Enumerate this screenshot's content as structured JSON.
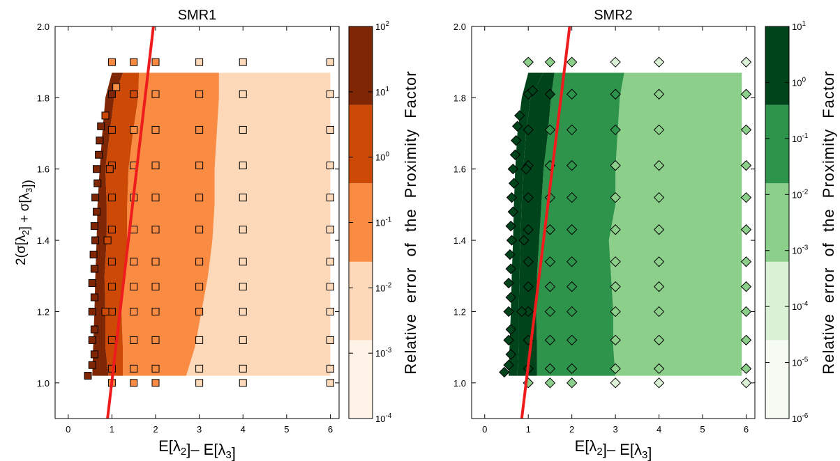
{
  "chart_data": [
    {
      "type": "contour",
      "title": "SMR1",
      "xlabel": "E[λ2]– E[λ3]",
      "ylabel": "2(σ[λ2] + σ[λ3])",
      "xlim": [
        -0.3,
        6.2
      ],
      "ylim": [
        0.9,
        2.0
      ],
      "x_ticks": [
        "0",
        "1",
        "2",
        "3",
        "4",
        "5",
        "6"
      ],
      "y_ticks": [
        "1.0",
        "1.2",
        "1.4",
        "1.6",
        "1.8",
        "2.0"
      ],
      "marker": "square",
      "colorbar": {
        "label": "Relative error of the Proximity Factor",
        "ticks": [
          "10^-4",
          "10^-3",
          "10^-2",
          "10^-1",
          "10^0",
          "10^1",
          "10^2"
        ],
        "levels_log10": [
          -4,
          -3,
          -2,
          -1,
          0,
          1,
          2
        ],
        "colors": [
          "#fff2e6",
          "#fdd9b9",
          "#f98b42",
          "#cd4a06",
          "#7f2704"
        ]
      },
      "regions": [
        {
          "level_log10": -3,
          "x_left": [
            2.7,
            2.9,
            3.05,
            3.2,
            3.3,
            3.35,
            3.35,
            3.4,
            3.45,
            3.45
          ],
          "x_right": 6.0
        },
        {
          "level_log10": -2,
          "x_left": [
            1.25,
            1.25,
            1.22,
            1.28,
            1.35,
            1.35,
            1.38,
            1.48,
            1.6,
            1.62
          ],
          "x_right_by_y": [
            2.7,
            2.9,
            3.05,
            3.2,
            3.3,
            3.35,
            3.35,
            3.4,
            3.45,
            3.45
          ]
        },
        {
          "level_log10": -1,
          "x_left": [
            0.92,
            0.85,
            0.85,
            0.83,
            0.88,
            0.88,
            0.85,
            0.95,
            1.05,
            1.25
          ]
        },
        {
          "level_log10": 0,
          "x_left": [
            0.55,
            0.57,
            0.6,
            0.62,
            0.65,
            0.67,
            0.72,
            0.78,
            0.85,
            1.0
          ]
        }
      ],
      "region_y": [
        1.02,
        1.1,
        1.2,
        1.3,
        1.4,
        1.5,
        1.6,
        1.7,
        1.8,
        1.87
      ],
      "grid_x": [
        1,
        1.5,
        2,
        3,
        4,
        6
      ],
      "grid_y": [
        1.0,
        1.04,
        1.12,
        1.2,
        1.27,
        1.34,
        1.43,
        1.52,
        1.61,
        1.71,
        1.81,
        1.9
      ],
      "boundary_points": [
        {
          "x": 0.45,
          "y": 1.02,
          "log_err": 0.5
        },
        {
          "x": 0.55,
          "y": 1.05,
          "log_err": 0.5
        },
        {
          "x": 0.6,
          "y": 1.08,
          "log_err": 0.3
        },
        {
          "x": 0.55,
          "y": 1.12,
          "log_err": 0.5
        },
        {
          "x": 0.6,
          "y": 1.15,
          "log_err": 0.3
        },
        {
          "x": 0.55,
          "y": 1.2,
          "log_err": 0.5
        },
        {
          "x": 0.6,
          "y": 1.24,
          "log_err": 0.3
        },
        {
          "x": 0.55,
          "y": 1.28,
          "log_err": 0.5
        },
        {
          "x": 0.6,
          "y": 1.32,
          "log_err": 0.3
        },
        {
          "x": 0.58,
          "y": 1.36,
          "log_err": 0.5
        },
        {
          "x": 0.62,
          "y": 1.4,
          "log_err": 0.3
        },
        {
          "x": 0.6,
          "y": 1.44,
          "log_err": 0.5
        },
        {
          "x": 0.65,
          "y": 1.48,
          "log_err": 0.3
        },
        {
          "x": 0.62,
          "y": 1.52,
          "log_err": 0.5
        },
        {
          "x": 0.67,
          "y": 1.56,
          "log_err": 0.3
        },
        {
          "x": 0.65,
          "y": 1.6,
          "log_err": 0.5
        },
        {
          "x": 0.7,
          "y": 1.64,
          "log_err": 0.3
        },
        {
          "x": 0.72,
          "y": 1.68,
          "log_err": 0.5
        },
        {
          "x": 0.75,
          "y": 1.72,
          "log_err": 0.3
        },
        {
          "x": 0.85,
          "y": 1.75,
          "log_err": -0.5
        },
        {
          "x": 1.1,
          "y": 1.83,
          "log_err": -1.5
        },
        {
          "x": 0.9,
          "y": 1.4,
          "log_err": -0.5
        },
        {
          "x": 0.85,
          "y": 1.2,
          "log_err": -0.5
        },
        {
          "x": 0.95,
          "y": 1.6,
          "log_err": -0.5
        }
      ],
      "fit_line": {
        "x": [
          0.9,
          1.95
        ],
        "y": [
          0.9,
          2.0
        ],
        "color": "#ee1c1c"
      }
    },
    {
      "type": "contour",
      "title": "SMR2",
      "xlabel": "E[λ2]– E[λ3]",
      "ylabel": "",
      "xlim": [
        -0.3,
        6.2
      ],
      "ylim": [
        0.9,
        2.0
      ],
      "x_ticks": [
        "0",
        "1",
        "2",
        "3",
        "4",
        "5",
        "6"
      ],
      "y_ticks": [
        "1.0",
        "1.2",
        "1.4",
        "1.6",
        "1.8",
        "2.0"
      ],
      "marker": "diamond",
      "colorbar": {
        "label": "Relative error of the Proximity Factor",
        "ticks": [
          "10^-6",
          "10^-5",
          "10^-4",
          "10^-3",
          "10^-2",
          "10^-1",
          "10^0",
          "10^1"
        ],
        "levels_log10": [
          -6,
          -5,
          -4,
          -3,
          -2,
          -1,
          0,
          1
        ],
        "colors": [
          "#f5fbf3",
          "#dbf1d6",
          "#8ccf8b",
          "#2e944b",
          "#00441b"
        ]
      },
      "regions": [
        {
          "level_log10": -4,
          "x_left": [
            3.0,
            2.95,
            2.95,
            2.9,
            2.85,
            3.0,
            3.0,
            3.05,
            3.1,
            3.2
          ],
          "x_right": 5.9
        },
        {
          "level_log10": -3,
          "x_left": [
            1.2,
            1.2,
            1.18,
            1.2,
            1.25,
            1.3,
            1.35,
            1.45,
            1.52,
            1.6
          ]
        },
        {
          "level_log10": -2,
          "x_left": [
            0.75,
            0.78,
            0.78,
            0.8,
            0.82,
            0.85,
            0.88,
            0.95,
            1.05,
            1.35
          ]
        },
        {
          "level_log10": -1,
          "x_left": [
            0.55,
            0.57,
            0.6,
            0.62,
            0.65,
            0.67,
            0.7,
            0.75,
            0.85,
            1.0
          ]
        }
      ],
      "region_y": [
        1.02,
        1.1,
        1.2,
        1.3,
        1.4,
        1.5,
        1.6,
        1.7,
        1.8,
        1.87
      ],
      "grid_x": [
        1,
        1.5,
        2,
        3,
        4,
        6
      ],
      "grid_y": [
        1.0,
        1.04,
        1.12,
        1.2,
        1.27,
        1.34,
        1.43,
        1.52,
        1.61,
        1.71,
        1.81,
        1.9
      ],
      "boundary_points": [
        {
          "x": 0.45,
          "y": 1.03,
          "log_err": -0.5
        },
        {
          "x": 0.55,
          "y": 1.05,
          "log_err": -0.5
        },
        {
          "x": 0.6,
          "y": 1.08,
          "log_err": -0.5
        },
        {
          "x": 0.55,
          "y": 1.12,
          "log_err": -0.5
        },
        {
          "x": 0.6,
          "y": 1.15,
          "log_err": -0.5
        },
        {
          "x": 0.55,
          "y": 1.2,
          "log_err": -0.5
        },
        {
          "x": 0.6,
          "y": 1.24,
          "log_err": -0.5
        },
        {
          "x": 0.55,
          "y": 1.28,
          "log_err": -0.5
        },
        {
          "x": 0.6,
          "y": 1.32,
          "log_err": -0.5
        },
        {
          "x": 0.58,
          "y": 1.36,
          "log_err": -0.5
        },
        {
          "x": 0.62,
          "y": 1.4,
          "log_err": -0.5
        },
        {
          "x": 0.6,
          "y": 1.44,
          "log_err": -0.5
        },
        {
          "x": 0.65,
          "y": 1.48,
          "log_err": -0.5
        },
        {
          "x": 0.62,
          "y": 1.52,
          "log_err": -0.5
        },
        {
          "x": 0.67,
          "y": 1.56,
          "log_err": -0.5
        },
        {
          "x": 0.65,
          "y": 1.6,
          "log_err": -0.5
        },
        {
          "x": 0.7,
          "y": 1.64,
          "log_err": -0.5
        },
        {
          "x": 0.72,
          "y": 1.68,
          "log_err": -0.5
        },
        {
          "x": 0.75,
          "y": 1.72,
          "log_err": -0.5
        },
        {
          "x": 0.8,
          "y": 1.75,
          "log_err": -1.5
        },
        {
          "x": 1.1,
          "y": 1.82,
          "log_err": -1.5
        },
        {
          "x": 0.9,
          "y": 1.4,
          "log_err": -1.5
        },
        {
          "x": 0.85,
          "y": 1.2,
          "log_err": -1.5
        },
        {
          "x": 0.95,
          "y": 1.6,
          "log_err": -1.5
        }
      ],
      "fit_line": {
        "x": [
          0.85,
          1.95
        ],
        "y": [
          0.9,
          2.0
        ],
        "color": "#ee1c1c"
      }
    }
  ]
}
